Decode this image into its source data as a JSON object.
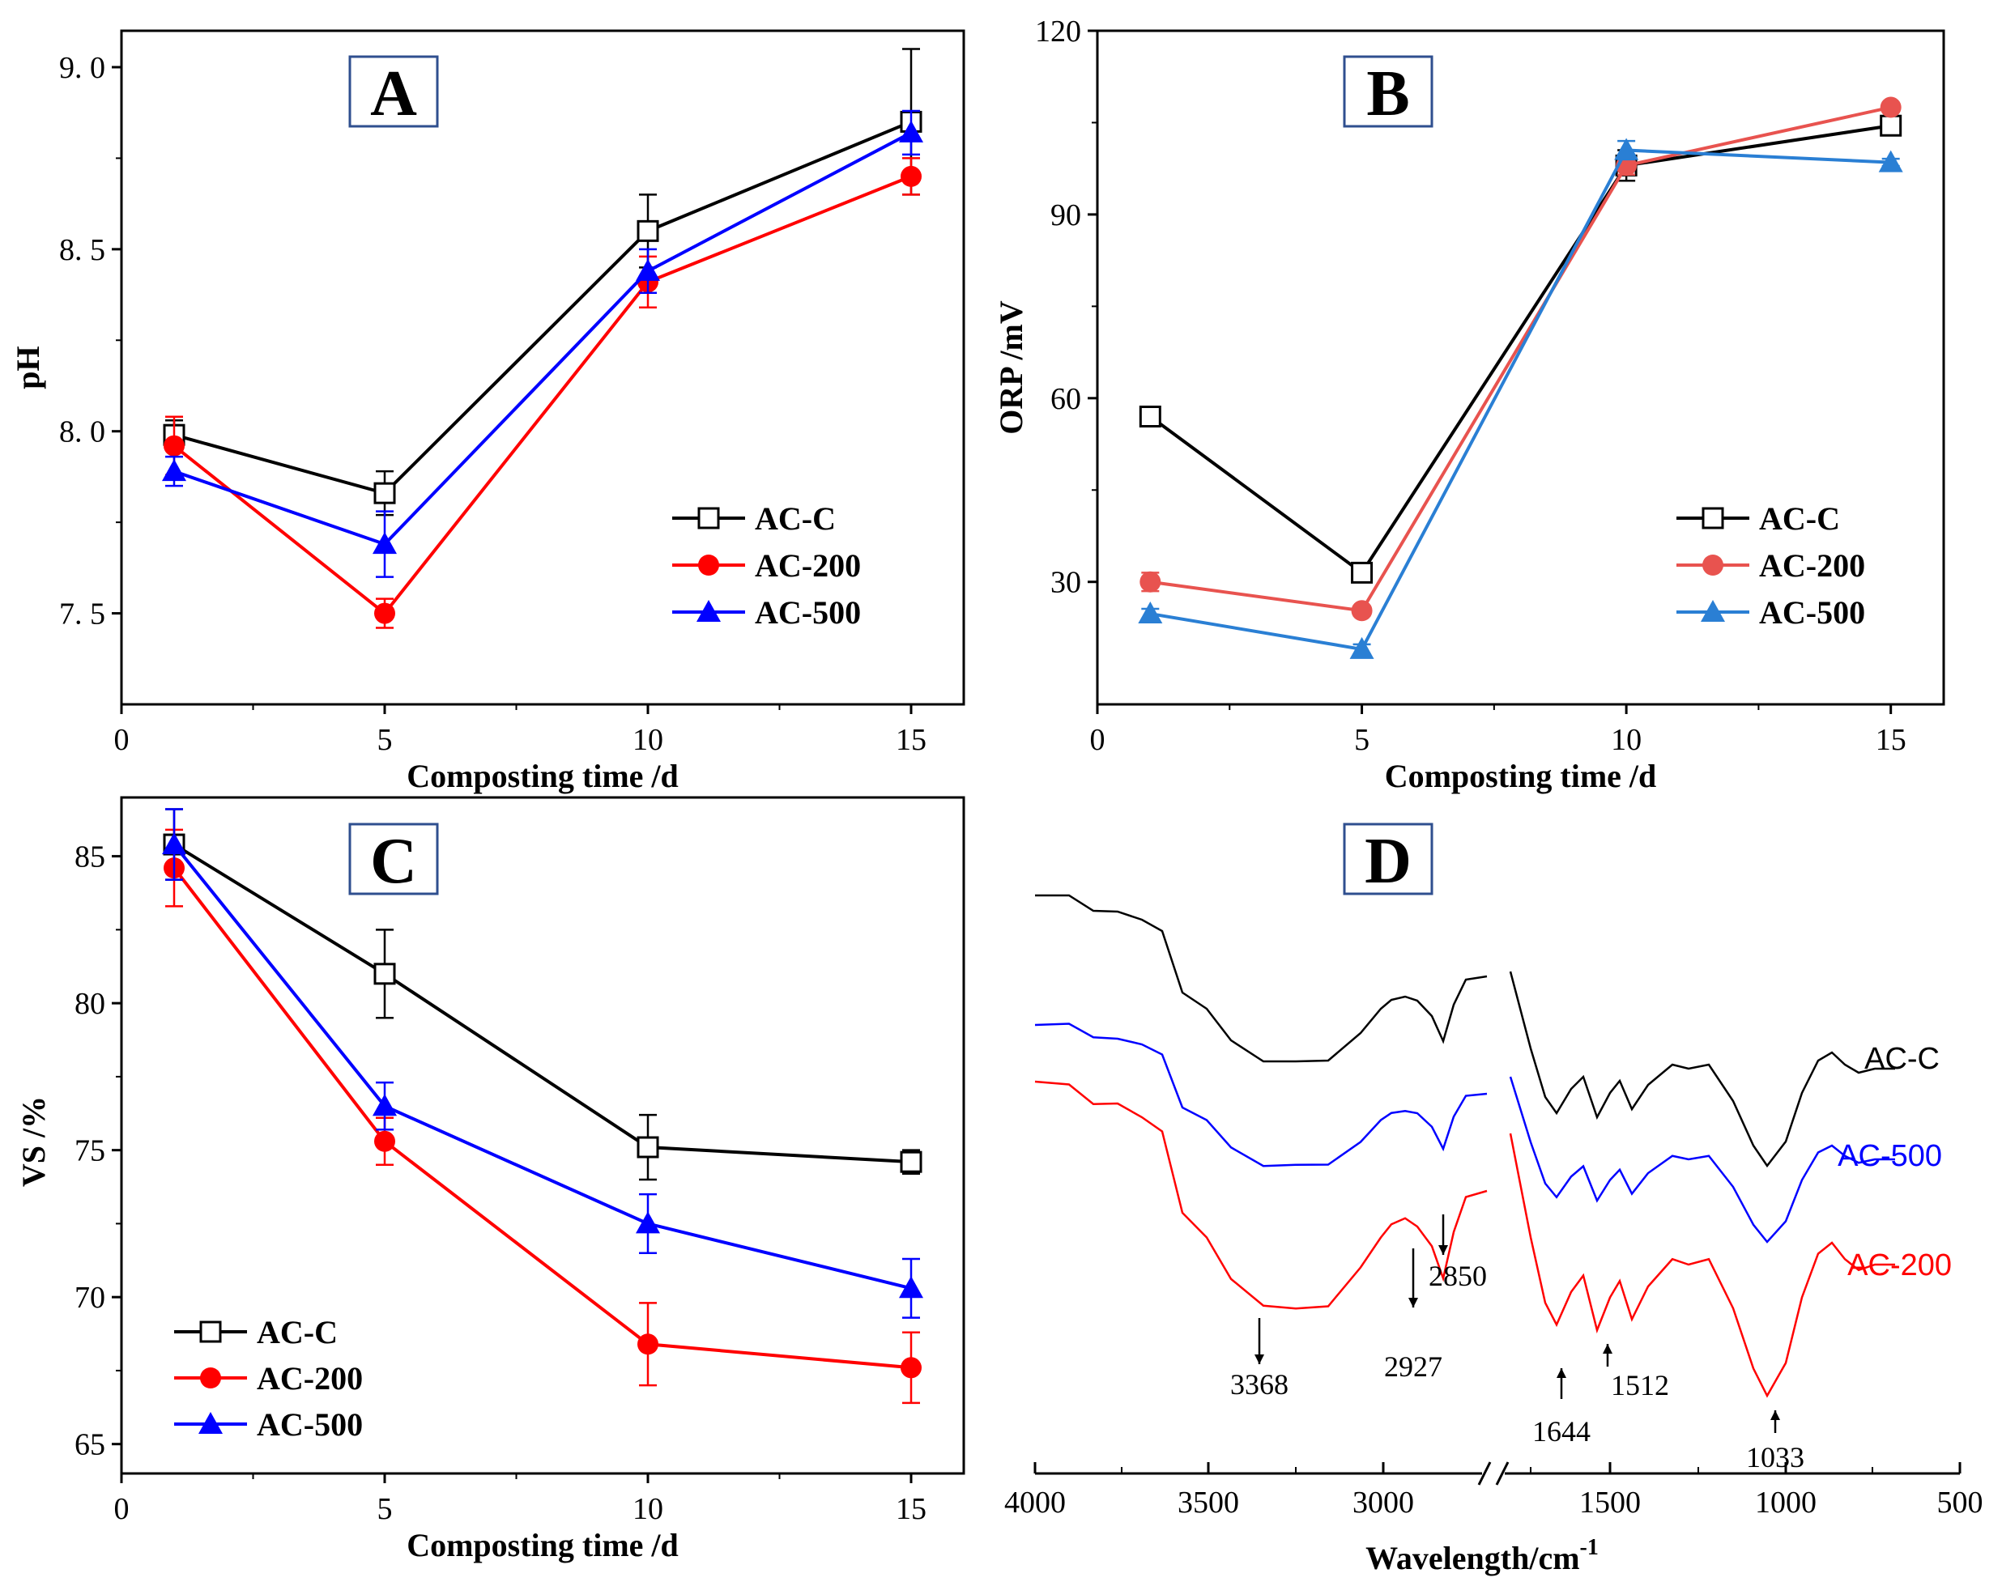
{
  "colors": {
    "black": "#000000",
    "red": "#ff0000",
    "blue": "#0000ff",
    "blueB": "#2a7fd4",
    "redB": "#e8534f"
  },
  "chart_data": [
    {
      "id": "A",
      "type": "line",
      "panel_label": "A",
      "xlabel": "Composting time /d",
      "ylabel": "pH",
      "xlim": [
        0,
        16
      ],
      "ylim": [
        7.25,
        9.1
      ],
      "xticks": [
        0,
        5,
        10,
        15
      ],
      "xtick_labels": [
        "0",
        "5",
        "10",
        "15"
      ],
      "yticks": [
        7.5,
        8.0,
        8.5,
        9.0
      ],
      "ytick_labels": [
        "7. 5",
        "8. 0",
        "8. 5",
        "9. 0"
      ],
      "x": [
        1,
        5,
        10,
        15
      ],
      "legend_position": "center-right",
      "series": [
        {
          "name": "AC-C",
          "values": [
            7.99,
            7.83,
            8.55,
            8.85
          ],
          "errors": [
            0.04,
            0.06,
            0.1,
            0.2
          ]
        },
        {
          "name": "AC-200",
          "values": [
            7.96,
            7.5,
            8.41,
            8.7
          ],
          "errors": [
            0.08,
            0.04,
            0.07,
            0.05
          ]
        },
        {
          "name": "AC-500",
          "values": [
            7.89,
            7.69,
            8.44,
            8.82
          ],
          "errors": [
            0.04,
            0.09,
            0.06,
            0.06
          ]
        }
      ]
    },
    {
      "id": "B",
      "type": "line",
      "panel_label": "B",
      "xlabel": "Composting time /d",
      "ylabel": "ORP /mV",
      "xlim": [
        0,
        16
      ],
      "ylim": [
        10,
        120
      ],
      "xticks": [
        0,
        5,
        10,
        15
      ],
      "xtick_labels": [
        "0",
        "5",
        "10",
        "15"
      ],
      "yticks": [
        30,
        60,
        90,
        120
      ],
      "ytick_labels": [
        "30",
        "60",
        "90",
        "120"
      ],
      "x": [
        1,
        5,
        10,
        15
      ],
      "legend_position": "center-right",
      "series": [
        {
          "name": "AC-C",
          "values": [
            57,
            31.5,
            98,
            104.5
          ],
          "errors": [
            0.8,
            0.8,
            2.5,
            1.5
          ]
        },
        {
          "name": "AC-200",
          "values": [
            30,
            25.3,
            98,
            107.5
          ],
          "errors": [
            1.5,
            0.8,
            1.5,
            0.6
          ]
        },
        {
          "name": "AC-500",
          "values": [
            24.8,
            19,
            100.5,
            98.5
          ],
          "errors": [
            0.8,
            0.8,
            1.5,
            0.6
          ]
        }
      ]
    },
    {
      "id": "C",
      "type": "line",
      "panel_label": "C",
      "xlabel": "Composting time /d",
      "ylabel": "VS /%",
      "xlim": [
        0,
        16
      ],
      "ylim": [
        64,
        87
      ],
      "xticks": [
        0,
        5,
        10,
        15
      ],
      "xtick_labels": [
        "0",
        "5",
        "10",
        "15"
      ],
      "yticks": [
        65,
        70,
        75,
        80,
        85
      ],
      "ytick_labels": [
        "65",
        "70",
        "75",
        "80",
        "85"
      ],
      "x": [
        1,
        5,
        10,
        15
      ],
      "legend_position": "bottom-left",
      "series": [
        {
          "name": "AC-C",
          "values": [
            85.4,
            81,
            75.1,
            74.6
          ],
          "errors": [
            1.2,
            1.5,
            1.1,
            0.4
          ]
        },
        {
          "name": "AC-200",
          "values": [
            84.6,
            75.3,
            68.4,
            67.6
          ],
          "errors": [
            1.3,
            0.8,
            1.4,
            1.2
          ]
        },
        {
          "name": "AC-500",
          "values": [
            85.4,
            76.5,
            72.5,
            70.3
          ],
          "errors": [
            1.2,
            0.8,
            1.0,
            1.0
          ]
        }
      ]
    },
    {
      "id": "D",
      "type": "line",
      "panel_label": "D",
      "xlabel": "Wavelength/cm",
      "xlabel_sup": "-1",
      "xtick_labels": [
        "4000",
        "3500",
        "3000",
        "1500",
        "1000",
        "500"
      ],
      "series_labels": [
        "AC-C",
        "AC-500",
        "AC-200"
      ],
      "peaks": [
        "3368",
        "2927",
        "2850",
        "1644",
        "1512",
        "1033"
      ]
    }
  ]
}
